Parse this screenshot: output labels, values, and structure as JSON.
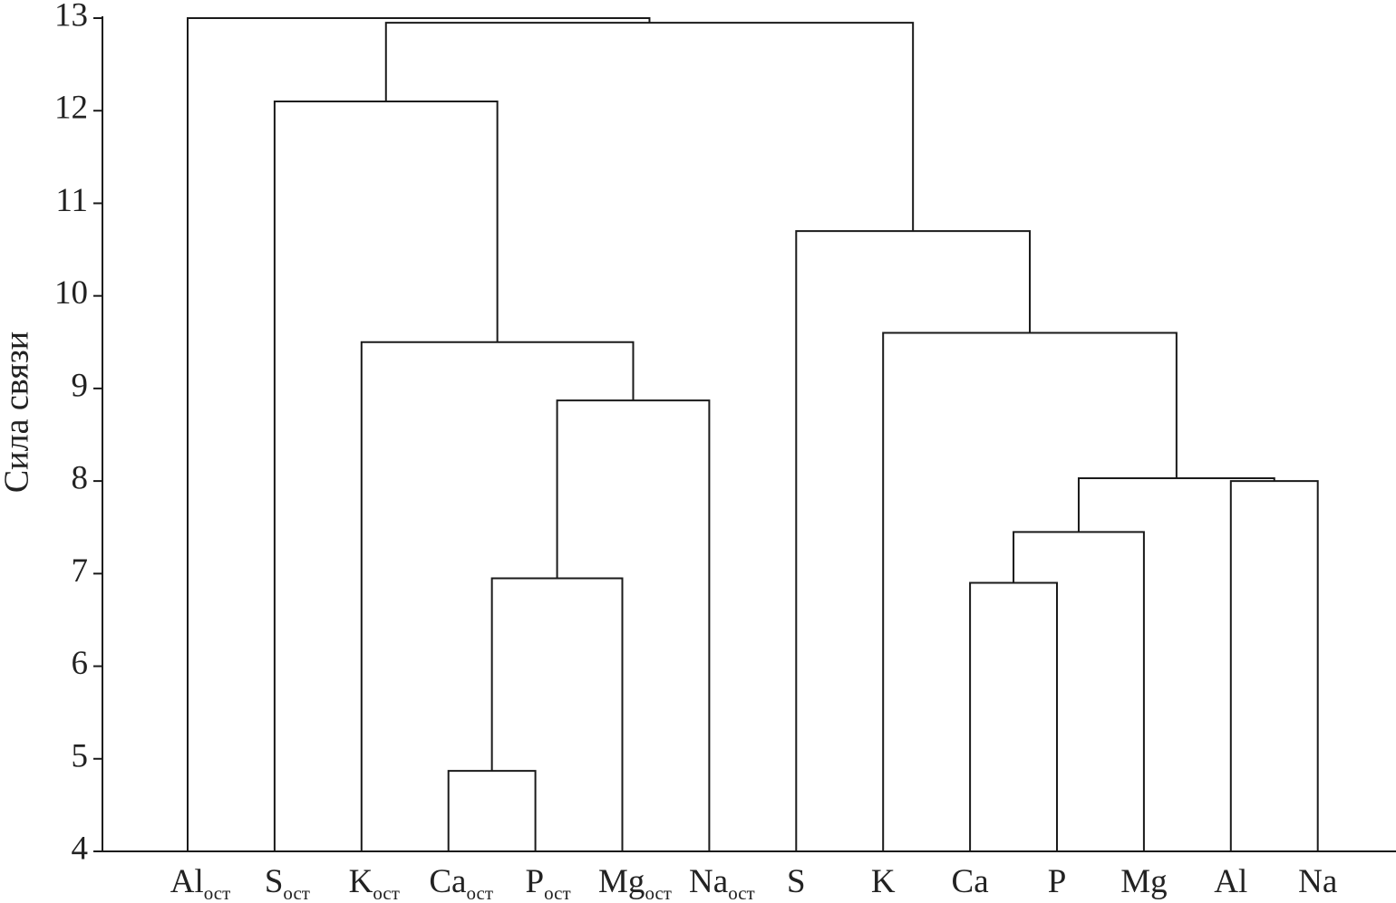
{
  "chart_data": {
    "type": "dendrogram",
    "y_label": "Сила связи",
    "categories": [
      "Al",
      "S",
      "K",
      "Ca",
      "P",
      "Mg",
      "Na",
      "S",
      "K",
      "Ca",
      "P",
      "Mg",
      "Al",
      "Na"
    ],
    "subscripts": [
      "ост",
      "ост",
      "ост",
      "ост",
      "ост",
      "ост",
      "ост",
      null,
      null,
      null,
      null,
      null,
      null,
      null
    ],
    "merges": [
      {
        "children": [
          3,
          4
        ],
        "height": 4.87
      },
      {
        "children": [
          14,
          5
        ],
        "height": 6.95
      },
      {
        "children": [
          15,
          6
        ],
        "height": 8.87
      },
      {
        "children": [
          2,
          16
        ],
        "height": 9.5
      },
      {
        "children": [
          1,
          17
        ],
        "height": 12.1
      },
      {
        "children": [
          9,
          10
        ],
        "height": 6.9
      },
      {
        "children": [
          19,
          11
        ],
        "height": 7.45
      },
      {
        "children": [
          12,
          13
        ],
        "height": 8.0
      },
      {
        "children": [
          20,
          21
        ],
        "height": 8.03
      },
      {
        "children": [
          8,
          22
        ],
        "height": 9.6
      },
      {
        "children": [
          7,
          23
        ],
        "height": 10.7
      },
      {
        "children": [
          18,
          24
        ],
        "height": 12.95
      },
      {
        "children": [
          0,
          25
        ],
        "height": 13.0
      }
    ],
    "color": "#1a1a1a",
    "ylim": [
      4,
      13
    ],
    "yticks": [
      4,
      5,
      6,
      7,
      8,
      9,
      10,
      11,
      12,
      13
    ]
  }
}
